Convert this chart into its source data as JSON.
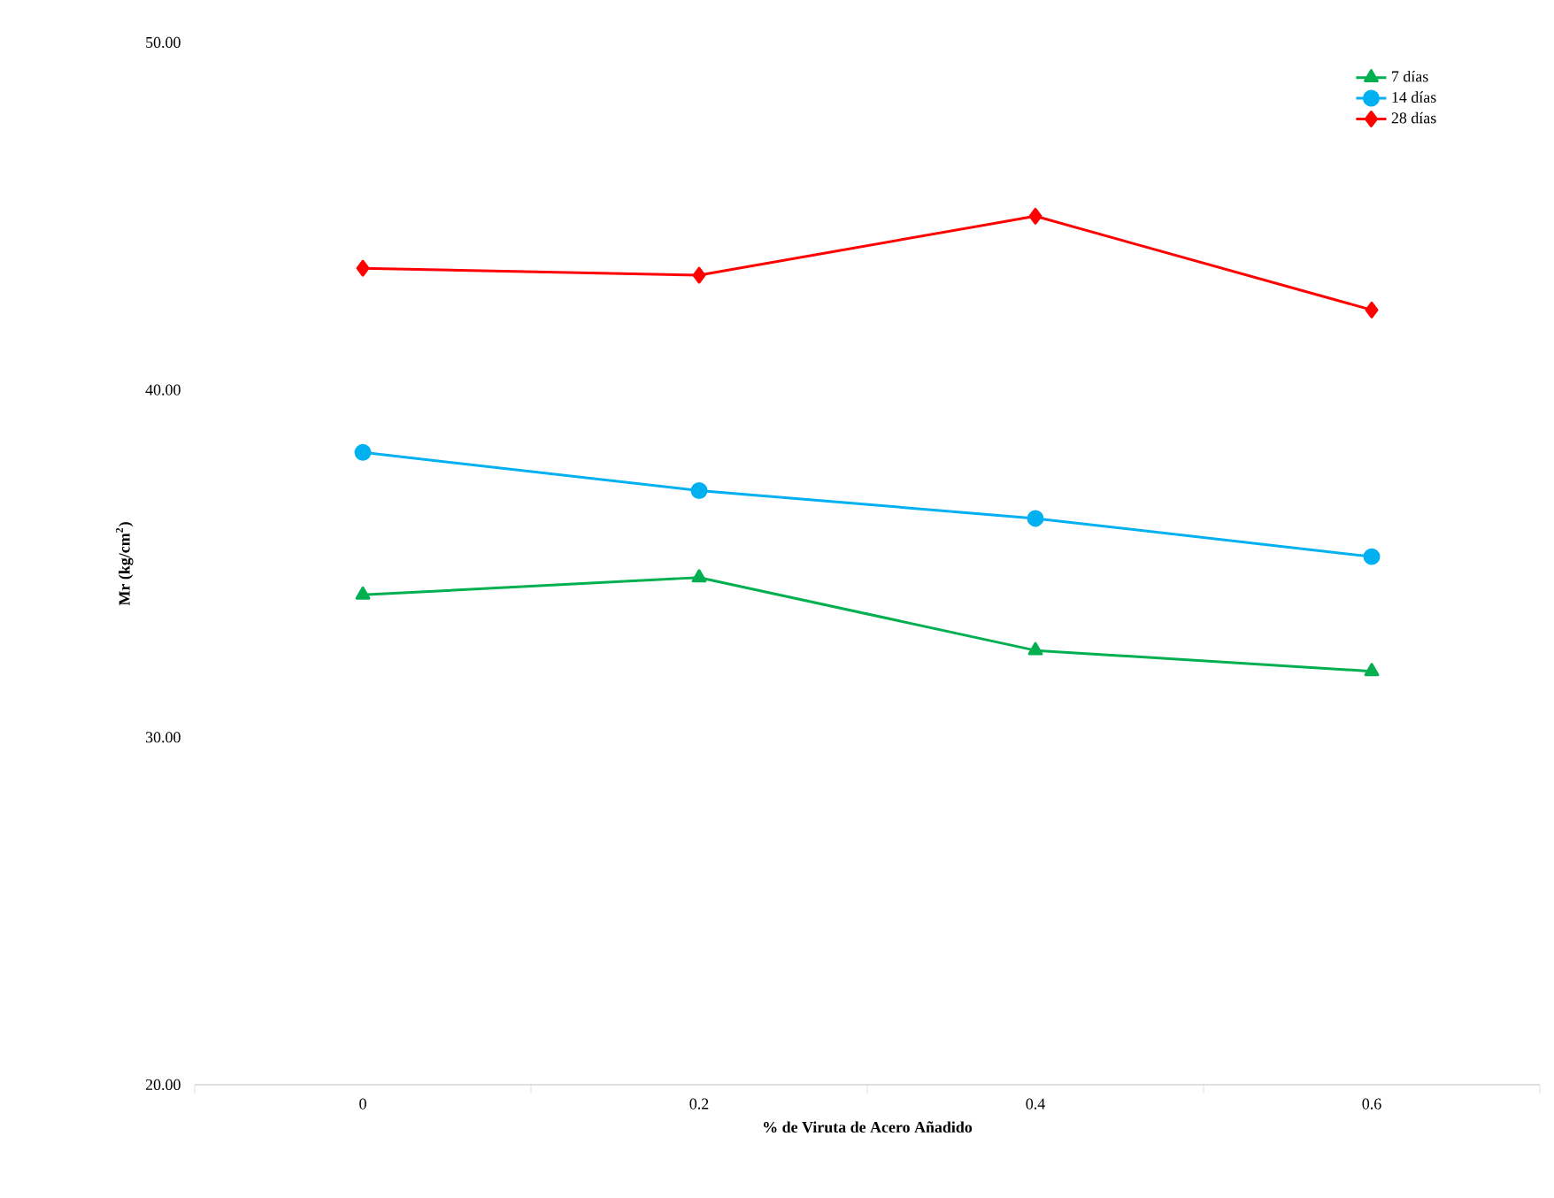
{
  "chart_data": {
    "type": "line",
    "xlabel": "% de Viruta de Acero Añadido",
    "ylabel": "Mr (kg/cm$^{2}$)",
    "categories": [
      "0",
      "0.2",
      "0.4",
      "0.6"
    ],
    "series": [
      {
        "name": "7 días",
        "color": "#00b050",
        "marker": "triangle",
        "values": [
          34.1,
          34.6,
          32.5,
          31.9
        ]
      },
      {
        "name": "14 días",
        "color": "#00b0f0",
        "marker": "circle",
        "values": [
          38.2,
          37.1,
          36.3,
          35.2
        ]
      },
      {
        "name": "28 días",
        "color": "#ff0000",
        "marker": "diamond",
        "values": [
          43.5,
          43.3,
          45.0,
          42.3
        ]
      }
    ],
    "ylim": [
      20,
      50
    ],
    "yticks": [
      {
        "value": 20,
        "label": "20.00"
      },
      {
        "value": 30,
        "label": "30.00"
      },
      {
        "value": 40,
        "label": "40.00"
      },
      {
        "value": 50,
        "label": "50.00"
      }
    ],
    "grid": false,
    "legend": "top right",
    "line_style": "solid"
  }
}
